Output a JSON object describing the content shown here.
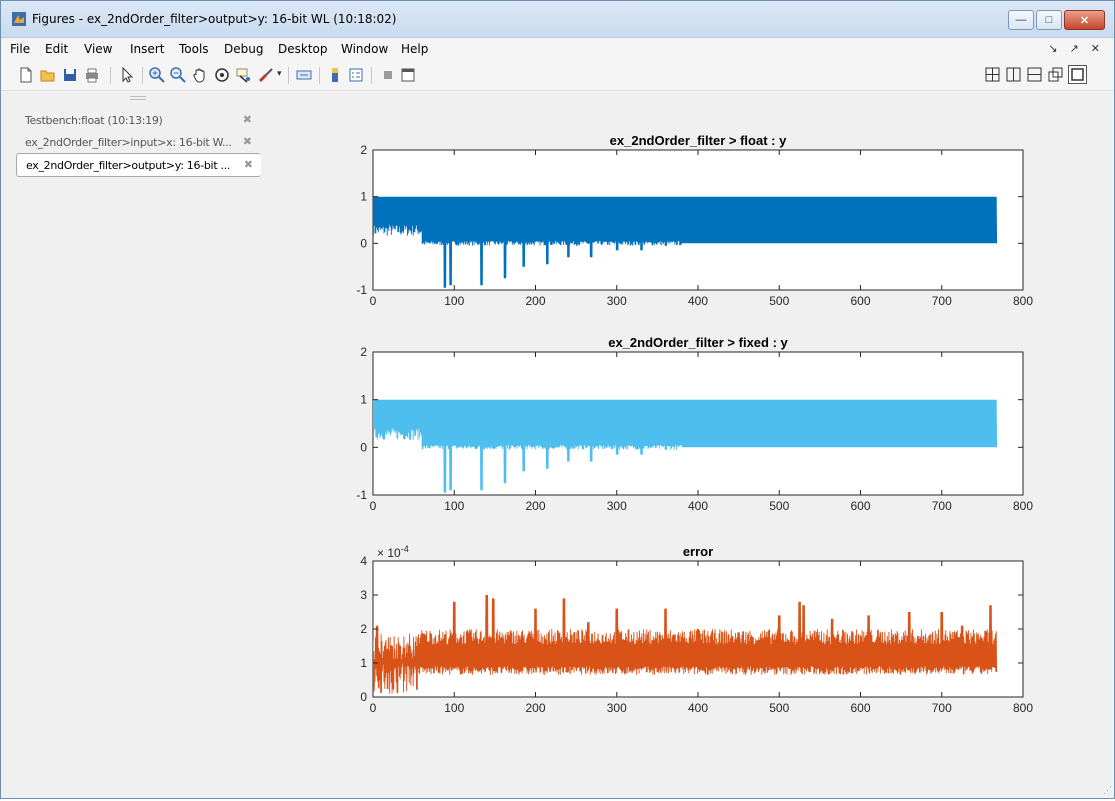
{
  "window": {
    "title": "Figures - ex_2ndOrder_filter>output>y: 16-bit WL (10:18:02)",
    "buttons": {
      "minimize": "—",
      "maximize": "□",
      "close": "✕"
    }
  },
  "menu": {
    "items": [
      "File",
      "Edit",
      "View",
      "Insert",
      "Tools",
      "Debug",
      "Desktop",
      "Window",
      "Help"
    ],
    "right": {
      "undock": "↘",
      "pin": "↗",
      "close": "✕"
    }
  },
  "toolbar": {
    "icons": [
      "new-figure-icon",
      "open-file-icon",
      "save-icon",
      "print-icon",
      "edit-plot-icon",
      "zoom-in-icon",
      "zoom-out-icon",
      "pan-icon",
      "rotate-3d-icon",
      "data-cursor-icon",
      "brush-icon",
      "link-plot-icon",
      "colorbar-icon",
      "legend-icon",
      "hide-plot-tools-icon",
      "show-plot-tools-icon"
    ],
    "layout_icons": [
      "tile-icon",
      "left-right-icon",
      "top-bottom-icon",
      "float-icon",
      "maximize-icon"
    ]
  },
  "sidebar": {
    "figures": [
      {
        "label": "Testbench:float (10:13:19)",
        "active": false
      },
      {
        "label": "ex_2ndOrder_filter>input>x: 16-bit W...",
        "active": false
      },
      {
        "label": "ex_2ndOrder_filter>output>y: 16-bit ...",
        "active": true
      }
    ],
    "close_glyph": "✖"
  },
  "chart_data": [
    {
      "type": "line",
      "title": "ex_2ndOrder_filter > float : y",
      "xlim": [
        0,
        800
      ],
      "ylim": [
        -1,
        2
      ],
      "xticks": [
        0,
        100,
        200,
        300,
        400,
        500,
        600,
        700,
        800
      ],
      "yticks": [
        -1,
        0,
        1,
        2
      ],
      "color": "#0072bd",
      "n": 768,
      "oscillation": {
        "high": 1,
        "low": 0
      },
      "dips": [
        {
          "x": 88,
          "y": -0.95
        },
        {
          "x": 95,
          "y": -0.9
        },
        {
          "x": 133,
          "y": -0.9
        },
        {
          "x": 162,
          "y": -0.75
        },
        {
          "x": 185,
          "y": -0.5
        },
        {
          "x": 214,
          "y": -0.45
        },
        {
          "x": 240,
          "y": -0.3
        },
        {
          "x": 268,
          "y": -0.3
        },
        {
          "x": 300,
          "y": -0.15
        },
        {
          "x": 330,
          "y": -0.15
        },
        {
          "x": 360,
          "y": -0.05
        }
      ]
    },
    {
      "type": "line",
      "title": "ex_2ndOrder_filter > fixed : y",
      "xlim": [
        0,
        800
      ],
      "ylim": [
        -1,
        2
      ],
      "xticks": [
        0,
        100,
        200,
        300,
        400,
        500,
        600,
        700,
        800
      ],
      "yticks": [
        -1,
        0,
        1,
        2
      ],
      "color": "#4dbeee",
      "n": 768,
      "oscillation": {
        "high": 1,
        "low": 0
      },
      "dips": [
        {
          "x": 88,
          "y": -0.95
        },
        {
          "x": 95,
          "y": -0.9
        },
        {
          "x": 133,
          "y": -0.9
        },
        {
          "x": 162,
          "y": -0.75
        },
        {
          "x": 185,
          "y": -0.5
        },
        {
          "x": 214,
          "y": -0.45
        },
        {
          "x": 240,
          "y": -0.3
        },
        {
          "x": 268,
          "y": -0.3
        },
        {
          "x": 300,
          "y": -0.15
        },
        {
          "x": 330,
          "y": -0.15
        },
        {
          "x": 360,
          "y": -0.05
        }
      ]
    },
    {
      "type": "line",
      "title": "error",
      "xlim": [
        0,
        800
      ],
      "ylim": [
        0,
        4
      ],
      "xticks": [
        0,
        100,
        200,
        300,
        400,
        500,
        600,
        700,
        800
      ],
      "yticks": [
        0,
        1,
        2,
        3,
        4
      ],
      "exponent_label": "× 10",
      "exponent": "-4",
      "color": "#d95319",
      "n": 768,
      "band": {
        "low": 0.65,
        "high_base": 1.55
      },
      "peaks": [
        {
          "x": 5,
          "y": 2.1
        },
        {
          "x": 100,
          "y": 2.8
        },
        {
          "x": 140,
          "y": 3.0
        },
        {
          "x": 148,
          "y": 2.9
        },
        {
          "x": 200,
          "y": 2.6
        },
        {
          "x": 235,
          "y": 2.9
        },
        {
          "x": 265,
          "y": 2.2
        },
        {
          "x": 300,
          "y": 2.6
        },
        {
          "x": 360,
          "y": 2.6
        },
        {
          "x": 400,
          "y": 2.0
        },
        {
          "x": 450,
          "y": 1.9
        },
        {
          "x": 500,
          "y": 2.4
        },
        {
          "x": 525,
          "y": 2.8
        },
        {
          "x": 530,
          "y": 2.7
        },
        {
          "x": 565,
          "y": 2.3
        },
        {
          "x": 610,
          "y": 2.4
        },
        {
          "x": 660,
          "y": 2.5
        },
        {
          "x": 700,
          "y": 2.5
        },
        {
          "x": 725,
          "y": 2.1
        },
        {
          "x": 760,
          "y": 2.7
        }
      ]
    }
  ]
}
